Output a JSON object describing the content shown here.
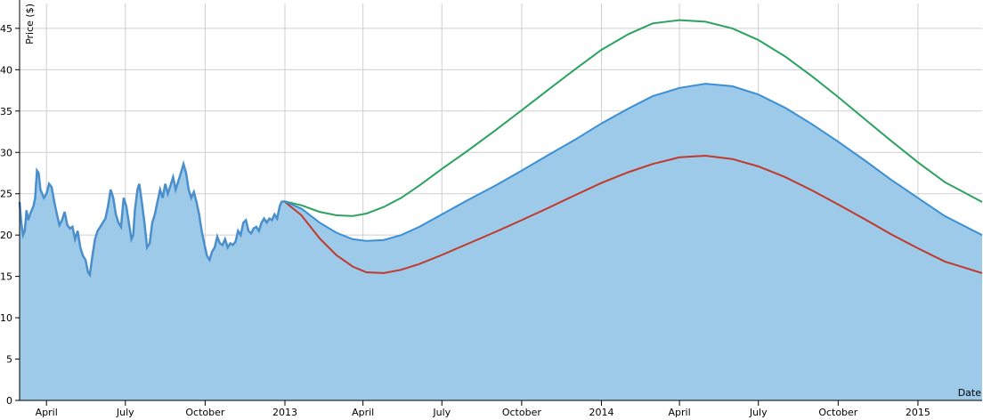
{
  "chart_data": {
    "type": "area",
    "title": "",
    "xlabel": "Date",
    "ylabel": "Price ($)",
    "ylim": [
      0,
      48
    ],
    "xlim": [
      "2012-03-01",
      "2015-03-16"
    ],
    "grid": true,
    "colors": {
      "area_fill": "#9ecae9",
      "history": "#4a8fcc",
      "forecast_mean": "#3b8fd4",
      "forecast_high": "#2ca25f",
      "forecast_low": "#c0392b"
    },
    "x_ticks": [
      {
        "date": "2012-04-01",
        "label": "April"
      },
      {
        "date": "2012-07-01",
        "label": "July"
      },
      {
        "date": "2012-10-01",
        "label": "October"
      },
      {
        "date": "2013-01-01",
        "label": "2013"
      },
      {
        "date": "2013-04-01",
        "label": "April"
      },
      {
        "date": "2013-07-01",
        "label": "July"
      },
      {
        "date": "2013-10-01",
        "label": "October"
      },
      {
        "date": "2014-01-01",
        "label": "2014"
      },
      {
        "date": "2014-04-01",
        "label": "April"
      },
      {
        "date": "2014-07-01",
        "label": "July"
      },
      {
        "date": "2014-10-01",
        "label": "October"
      },
      {
        "date": "2015-01-01",
        "label": "2015"
      }
    ],
    "y_ticks": [
      0,
      5,
      10,
      15,
      20,
      25,
      30,
      35,
      40,
      45
    ],
    "series": [
      {
        "values": [
          [
            "2012-03-01",
            24.0
          ],
          [
            "2012-03-03",
            21.5
          ],
          [
            "2012-03-05",
            20.0
          ],
          [
            "2012-03-07",
            20.5
          ],
          [
            "2012-03-09",
            23.0
          ],
          [
            "2012-03-11",
            21.8
          ],
          [
            "2012-03-13",
            22.5
          ],
          [
            "2012-03-15",
            23.0
          ],
          [
            "2012-03-17",
            23.5
          ],
          [
            "2012-03-19",
            24.5
          ],
          [
            "2012-03-21",
            27.8
          ],
          [
            "2012-03-23",
            27.5
          ],
          [
            "2012-03-25",
            25.5
          ],
          [
            "2012-03-27",
            25.0
          ],
          [
            "2012-03-29",
            24.5
          ],
          [
            "2012-04-01",
            25.0
          ],
          [
            "2012-04-04",
            26.2
          ],
          [
            "2012-04-07",
            25.8
          ],
          [
            "2012-04-10",
            24.0
          ],
          [
            "2012-04-13",
            22.5
          ],
          [
            "2012-04-16",
            21.2
          ],
          [
            "2012-04-19",
            21.8
          ],
          [
            "2012-04-22",
            22.8
          ],
          [
            "2012-04-25",
            21.2
          ],
          [
            "2012-04-28",
            20.8
          ],
          [
            "2012-05-01",
            21.0
          ],
          [
            "2012-05-04",
            19.5
          ],
          [
            "2012-05-07",
            20.5
          ],
          [
            "2012-05-10",
            18.5
          ],
          [
            "2012-05-13",
            17.5
          ],
          [
            "2012-05-16",
            17.0
          ],
          [
            "2012-05-19",
            15.5
          ],
          [
            "2012-05-21",
            15.2
          ],
          [
            "2012-05-24",
            17.5
          ],
          [
            "2012-05-27",
            19.5
          ],
          [
            "2012-05-30",
            20.5
          ],
          [
            "2012-06-02",
            21.0
          ],
          [
            "2012-06-05",
            21.5
          ],
          [
            "2012-06-08",
            22.0
          ],
          [
            "2012-06-11",
            23.5
          ],
          [
            "2012-06-14",
            25.5
          ],
          [
            "2012-06-17",
            24.5
          ],
          [
            "2012-06-20",
            22.5
          ],
          [
            "2012-06-23",
            21.5
          ],
          [
            "2012-06-26",
            21.0
          ],
          [
            "2012-06-29",
            24.5
          ],
          [
            "2012-07-02",
            23.5
          ],
          [
            "2012-07-05",
            21.5
          ],
          [
            "2012-07-08",
            19.5
          ],
          [
            "2012-07-10",
            20.0
          ],
          [
            "2012-07-12",
            23.0
          ],
          [
            "2012-07-15",
            25.5
          ],
          [
            "2012-07-17",
            26.2
          ],
          [
            "2012-07-20",
            24.0
          ],
          [
            "2012-07-23",
            21.5
          ],
          [
            "2012-07-26",
            18.5
          ],
          [
            "2012-07-29",
            19.0
          ],
          [
            "2012-08-01",
            21.5
          ],
          [
            "2012-08-04",
            22.5
          ],
          [
            "2012-08-07",
            24.0
          ],
          [
            "2012-08-10",
            25.5
          ],
          [
            "2012-08-13",
            24.5
          ],
          [
            "2012-08-16",
            26.2
          ],
          [
            "2012-08-19",
            25.0
          ],
          [
            "2012-08-22",
            26.0
          ],
          [
            "2012-08-25",
            27.0
          ],
          [
            "2012-08-28",
            25.5
          ],
          [
            "2012-08-31",
            26.5
          ],
          [
            "2012-09-03",
            27.5
          ],
          [
            "2012-09-06",
            28.6
          ],
          [
            "2012-09-09",
            27.5
          ],
          [
            "2012-09-12",
            25.5
          ],
          [
            "2012-09-15",
            24.5
          ],
          [
            "2012-09-18",
            25.2
          ],
          [
            "2012-09-21",
            24.0
          ],
          [
            "2012-09-24",
            22.5
          ],
          [
            "2012-09-27",
            20.5
          ],
          [
            "2012-09-30",
            19.0
          ],
          [
            "2012-10-03",
            17.5
          ],
          [
            "2012-10-06",
            17.0
          ],
          [
            "2012-10-09",
            18.0
          ],
          [
            "2012-10-12",
            18.5
          ],
          [
            "2012-10-15",
            19.8
          ],
          [
            "2012-10-18",
            19.0
          ],
          [
            "2012-10-21",
            18.8
          ],
          [
            "2012-10-24",
            19.5
          ],
          [
            "2012-10-27",
            18.5
          ],
          [
            "2012-10-30",
            19.0
          ],
          [
            "2012-11-02",
            18.8
          ],
          [
            "2012-11-05",
            19.2
          ],
          [
            "2012-11-08",
            20.5
          ],
          [
            "2012-11-11",
            20.0
          ],
          [
            "2012-11-14",
            21.5
          ],
          [
            "2012-11-17",
            21.8
          ],
          [
            "2012-11-20",
            20.5
          ],
          [
            "2012-11-23",
            20.2
          ],
          [
            "2012-11-26",
            20.8
          ],
          [
            "2012-11-29",
            21.0
          ],
          [
            "2012-12-02",
            20.5
          ],
          [
            "2012-12-05",
            21.5
          ],
          [
            "2012-12-08",
            22.0
          ],
          [
            "2012-12-11",
            21.5
          ],
          [
            "2012-12-14",
            22.0
          ],
          [
            "2012-12-17",
            21.8
          ],
          [
            "2012-12-20",
            22.5
          ],
          [
            "2012-12-23",
            22.0
          ],
          [
            "2012-12-26",
            23.5
          ],
          [
            "2012-12-28",
            24.0
          ],
          [
            "2012-12-31",
            24.1
          ]
        ]
      },
      {
        "values": [
          [
            "2012-12-31",
            24.1
          ],
          [
            "2013-01-20",
            23.2
          ],
          [
            "2013-02-10",
            21.5
          ],
          [
            "2013-03-01",
            20.3
          ],
          [
            "2013-03-20",
            19.5
          ],
          [
            "2013-04-05",
            19.3
          ],
          [
            "2013-04-25",
            19.4
          ],
          [
            "2013-05-15",
            20.0
          ],
          [
            "2013-06-05",
            21.0
          ],
          [
            "2013-07-01",
            22.5
          ],
          [
            "2013-08-01",
            24.3
          ],
          [
            "2013-09-01",
            26.0
          ],
          [
            "2013-10-01",
            27.8
          ],
          [
            "2013-11-01",
            29.7
          ],
          [
            "2013-12-01",
            31.5
          ],
          [
            "2014-01-01",
            33.5
          ],
          [
            "2014-02-01",
            35.3
          ],
          [
            "2014-03-01",
            36.8
          ],
          [
            "2014-04-01",
            37.8
          ],
          [
            "2014-05-01",
            38.3
          ],
          [
            "2014-06-01",
            38.0
          ],
          [
            "2014-07-01",
            37.0
          ],
          [
            "2014-08-01",
            35.4
          ],
          [
            "2014-09-01",
            33.4
          ],
          [
            "2014-10-01",
            31.3
          ],
          [
            "2014-11-01",
            29.0
          ],
          [
            "2014-12-01",
            26.7
          ],
          [
            "2015-01-01",
            24.5
          ],
          [
            "2015-02-01",
            22.3
          ],
          [
            "2015-03-16",
            20.0
          ]
        ]
      },
      {
        "values": [
          [
            "2012-12-31",
            24.1
          ],
          [
            "2013-01-20",
            23.6
          ],
          [
            "2013-02-10",
            22.8
          ],
          [
            "2013-03-01",
            22.4
          ],
          [
            "2013-03-20",
            22.3
          ],
          [
            "2013-04-05",
            22.6
          ],
          [
            "2013-04-25",
            23.4
          ],
          [
            "2013-05-15",
            24.5
          ],
          [
            "2013-06-05",
            26.0
          ],
          [
            "2013-07-01",
            28.0
          ],
          [
            "2013-08-01",
            30.3
          ],
          [
            "2013-09-01",
            32.7
          ],
          [
            "2013-10-01",
            35.1
          ],
          [
            "2013-11-01",
            37.6
          ],
          [
            "2013-12-01",
            40.0
          ],
          [
            "2014-01-01",
            42.4
          ],
          [
            "2014-02-01",
            44.3
          ],
          [
            "2014-03-01",
            45.6
          ],
          [
            "2014-04-01",
            46.0
          ],
          [
            "2014-05-01",
            45.8
          ],
          [
            "2014-06-01",
            45.0
          ],
          [
            "2014-07-01",
            43.6
          ],
          [
            "2014-08-01",
            41.6
          ],
          [
            "2014-09-01",
            39.2
          ],
          [
            "2014-10-01",
            36.7
          ],
          [
            "2014-11-01",
            34.0
          ],
          [
            "2014-12-01",
            31.4
          ],
          [
            "2015-01-01",
            28.8
          ],
          [
            "2015-02-01",
            26.4
          ],
          [
            "2015-03-16",
            24.0
          ]
        ]
      },
      {
        "values": [
          [
            "2012-12-31",
            24.1
          ],
          [
            "2013-01-20",
            22.4
          ],
          [
            "2013-02-10",
            19.6
          ],
          [
            "2013-03-01",
            17.6
          ],
          [
            "2013-03-20",
            16.2
          ],
          [
            "2013-04-05",
            15.5
          ],
          [
            "2013-04-25",
            15.4
          ],
          [
            "2013-05-15",
            15.8
          ],
          [
            "2013-06-05",
            16.5
          ],
          [
            "2013-07-01",
            17.6
          ],
          [
            "2013-08-01",
            19.0
          ],
          [
            "2013-09-01",
            20.4
          ],
          [
            "2013-10-01",
            21.8
          ],
          [
            "2013-11-01",
            23.3
          ],
          [
            "2013-12-01",
            24.8
          ],
          [
            "2014-01-01",
            26.3
          ],
          [
            "2014-02-01",
            27.6
          ],
          [
            "2014-03-01",
            28.6
          ],
          [
            "2014-04-01",
            29.4
          ],
          [
            "2014-05-01",
            29.6
          ],
          [
            "2014-06-01",
            29.2
          ],
          [
            "2014-07-01",
            28.3
          ],
          [
            "2014-08-01",
            27.0
          ],
          [
            "2014-09-01",
            25.4
          ],
          [
            "2014-10-01",
            23.7
          ],
          [
            "2014-11-01",
            21.9
          ],
          [
            "2014-12-01",
            20.1
          ],
          [
            "2015-01-01",
            18.4
          ],
          [
            "2015-02-01",
            16.8
          ],
          [
            "2015-03-16",
            15.4
          ]
        ]
      }
    ]
  }
}
